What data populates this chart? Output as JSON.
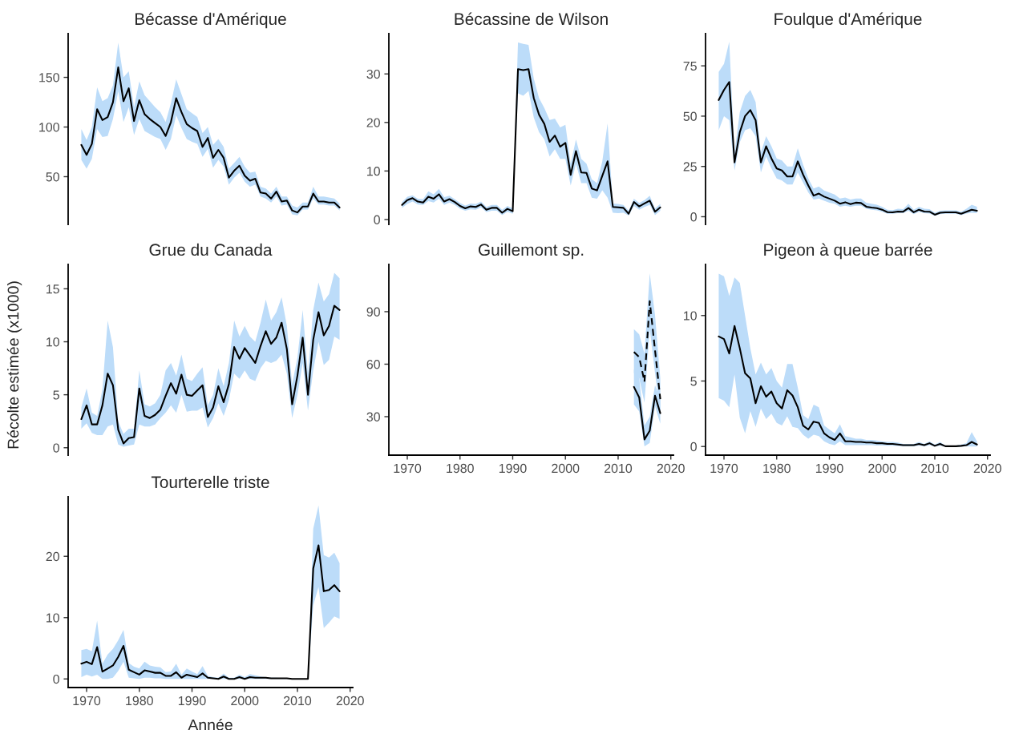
{
  "chart_data": [
    {
      "type": "line",
      "title": "Bécasse d'Amérique",
      "tick_labels": "y",
      "ylim": [
        2,
        194
      ],
      "yticks": [
        50,
        100,
        150
      ],
      "x": [
        1969,
        1970,
        1971,
        1972,
        1973,
        1974,
        1975,
        1976,
        1977,
        1978,
        1979,
        1980,
        1981,
        1982,
        1983,
        1984,
        1985,
        1986,
        1987,
        1988,
        1989,
        1990,
        1991,
        1992,
        1993,
        1994,
        1995,
        1996,
        1997,
        1998,
        1999,
        2000,
        2001,
        2002,
        2003,
        2004,
        2005,
        2006,
        2007,
        2008,
        2009,
        2010,
        2011,
        2012,
        2013,
        2014,
        2015,
        2016,
        2017,
        2018
      ],
      "series": [
        {
          "color": "#000000",
          "line_style": "solid",
          "values": [
            82,
            72,
            83,
            118,
            107,
            110,
            125,
            160,
            126,
            139,
            106,
            127,
            113,
            108,
            104,
            100,
            91,
            105,
            129,
            115,
            103,
            99,
            96,
            80,
            89,
            69,
            77,
            69,
            49,
            56,
            61,
            51,
            46,
            48,
            34,
            33,
            28,
            35,
            25,
            26,
            16,
            14,
            20,
            20,
            33,
            25,
            25,
            24,
            24,
            19
          ],
          "upper": [
            98,
            87,
            100,
            140,
            126,
            129,
            142,
            185,
            150,
            156,
            120,
            146,
            132,
            126,
            120,
            115,
            105,
            124,
            148,
            133,
            118,
            114,
            110,
            94,
            100,
            82,
            88,
            80,
            58,
            64,
            70,
            60,
            54,
            55,
            40,
            38,
            33,
            40,
            30,
            30,
            21,
            19,
            24,
            24,
            40,
            30,
            30,
            29,
            28,
            23
          ],
          "lower": [
            67,
            58,
            68,
            98,
            90,
            91,
            108,
            136,
            105,
            120,
            92,
            108,
            96,
            93,
            90,
            88,
            77,
            88,
            112,
            99,
            88,
            85,
            83,
            70,
            78,
            59,
            67,
            60,
            42,
            49,
            54,
            45,
            40,
            42,
            30,
            28,
            24,
            30,
            21,
            22,
            12,
            11,
            17,
            17,
            28,
            22,
            22,
            21,
            21,
            16
          ]
        }
      ]
    },
    {
      "type": "line",
      "title": "Bécassine de Wilson",
      "tick_labels": "y",
      "ylim": [
        -1,
        38.3
      ],
      "yticks": [
        0,
        10,
        20,
        30
      ],
      "x": [
        1969,
        1970,
        1971,
        1972,
        1973,
        1974,
        1975,
        1976,
        1977,
        1978,
        1979,
        1980,
        1981,
        1982,
        1983,
        1984,
        1985,
        1986,
        1987,
        1988,
        1989,
        1990,
        1991,
        1992,
        1993,
        1994,
        1995,
        1996,
        1997,
        1998,
        1999,
        2000,
        2001,
        2002,
        2003,
        2004,
        2005,
        2006,
        2007,
        2008,
        2009,
        2010,
        2011,
        2012,
        2013,
        2014,
        2015,
        2016,
        2017,
        2018
      ],
      "series": [
        {
          "color": "#000000",
          "line_style": "solid",
          "values": [
            3,
            4,
            4.4,
            3.7,
            3.5,
            4.7,
            4.3,
            5.2,
            3.7,
            4.2,
            3.6,
            2.8,
            2.3,
            2.7,
            2.6,
            3.1,
            2,
            2.4,
            2.4,
            1.4,
            2.2,
            1.7,
            31,
            30.8,
            31,
            25,
            21.6,
            19.7,
            16,
            17.3,
            15,
            15.8,
            9.2,
            14.1,
            9.7,
            9.6,
            6.4,
            6,
            9,
            12,
            2.6,
            2.5,
            2.4,
            1.2,
            3.6,
            2.7,
            3.3,
            3.9,
            1.6,
            2.5
          ],
          "upper": [
            3.6,
            4.7,
            5,
            4.3,
            4.2,
            5.8,
            5.2,
            6.3,
            4.6,
            4.9,
            4.2,
            3.4,
            2.9,
            3.3,
            3.2,
            3.7,
            2.6,
            3,
            3,
            2,
            2.8,
            2.3,
            36.5,
            36.2,
            36,
            29,
            25,
            23,
            20.5,
            20.8,
            19,
            19.5,
            11.5,
            16.5,
            12.5,
            11.5,
            8.3,
            7.5,
            12,
            19.8,
            3.3,
            3.2,
            3,
            1.8,
            4.3,
            3.4,
            4,
            4.9,
            2.3,
            3.2
          ],
          "lower": [
            2.4,
            3.2,
            3.7,
            3.1,
            3,
            3.8,
            3.5,
            4.3,
            3,
            3.5,
            3,
            2.2,
            1.8,
            2.1,
            2,
            2.5,
            1.5,
            1.8,
            1.8,
            0.9,
            1.6,
            1.2,
            26,
            25.5,
            26.5,
            21,
            18,
            16.5,
            13,
            14.5,
            12.5,
            12.5,
            7,
            11.5,
            7.5,
            7.5,
            4.5,
            4.3,
            6,
            4.5,
            1.4,
            1.3,
            1.4,
            0.8,
            2.8,
            2,
            2.6,
            3,
            0.9,
            1.8
          ]
        }
      ]
    },
    {
      "type": "line",
      "title": "Foulque d'Amérique",
      "tick_labels": "y",
      "ylim": [
        -3.8,
        91
      ],
      "yticks": [
        0,
        25,
        50,
        75
      ],
      "x": [
        1969,
        1970,
        1971,
        1972,
        1973,
        1974,
        1975,
        1976,
        1977,
        1978,
        1979,
        1980,
        1981,
        1982,
        1983,
        1984,
        1985,
        1986,
        1987,
        1988,
        1989,
        1990,
        1991,
        1992,
        1993,
        1994,
        1995,
        1996,
        1997,
        1998,
        1999,
        2000,
        2001,
        2002,
        2003,
        2004,
        2005,
        2006,
        2007,
        2008,
        2009,
        2010,
        2011,
        2012,
        2013,
        2014,
        2015,
        2016,
        2017,
        2018
      ],
      "series": [
        {
          "color": "#000000",
          "line_style": "solid",
          "values": [
            58,
            63,
            67,
            27,
            42,
            50,
            53,
            48,
            27,
            35,
            29,
            24,
            23,
            20,
            20,
            27.5,
            21,
            15.5,
            10.5,
            11.5,
            10,
            9,
            8,
            6.5,
            7.2,
            6.3,
            7,
            6.8,
            5,
            4.6,
            4.3,
            3.5,
            2.3,
            2.2,
            2.6,
            2.5,
            4.3,
            2.2,
            3.5,
            2.6,
            2.5,
            1,
            2,
            2.2,
            2.2,
            2.2,
            1.5,
            2.5,
            3.5,
            3
          ],
          "upper": [
            72,
            76,
            87,
            32,
            52,
            60,
            63,
            57,
            32,
            40,
            35,
            29,
            28,
            25,
            25,
            34,
            26,
            19,
            14,
            15,
            13,
            12,
            11,
            9,
            9.5,
            8.5,
            9,
            9,
            7,
            6.5,
            6,
            5,
            3.5,
            3.3,
            4,
            3.8,
            6.5,
            3.5,
            5,
            4,
            3.8,
            2,
            3,
            3.2,
            3.2,
            3.2,
            2.5,
            4,
            6,
            5
          ],
          "lower": [
            43,
            50,
            48,
            23,
            37,
            43,
            44,
            40,
            22,
            30,
            24,
            19,
            18,
            16,
            16,
            22,
            17,
            12,
            8.5,
            9,
            8,
            7,
            6.5,
            5,
            5.5,
            5,
            5.5,
            5.5,
            4,
            3.5,
            3.2,
            2.5,
            1.5,
            1.5,
            1.8,
            1.8,
            3,
            1.3,
            2.5,
            1.8,
            1.6,
            0.5,
            1.3,
            1.5,
            1.5,
            1.5,
            0.8,
            1.6,
            2,
            1.8
          ]
        }
      ]
    },
    {
      "type": "line",
      "title": "Grue du Canada",
      "ylabel": "Récolte estimée (x1000)",
      "tick_labels": "y",
      "ylim": [
        -0.7,
        17.3
      ],
      "yticks": [
        0,
        5,
        10,
        15
      ],
      "x": [
        1969,
        1970,
        1971,
        1972,
        1973,
        1974,
        1975,
        1976,
        1977,
        1978,
        1979,
        1980,
        1981,
        1982,
        1983,
        1984,
        1985,
        1986,
        1987,
        1988,
        1989,
        1990,
        1991,
        1992,
        1993,
        1994,
        1995,
        1996,
        1997,
        1998,
        1999,
        2000,
        2001,
        2002,
        2003,
        2004,
        2005,
        2006,
        2007,
        2008,
        2009,
        2010,
        2011,
        2012,
        2013,
        2014,
        2015,
        2016,
        2017,
        2018
      ],
      "series": [
        {
          "color": "#000000",
          "line_style": "solid",
          "values": [
            2.7,
            4,
            2.2,
            2.2,
            4,
            7,
            5.9,
            1.7,
            0.4,
            0.9,
            1,
            5.6,
            3,
            2.8,
            3.1,
            3.6,
            4.9,
            6.1,
            5.1,
            6.9,
            5,
            4.9,
            5.4,
            5.9,
            2.9,
            3.8,
            5.8,
            4.3,
            6,
            9.5,
            8.4,
            9.4,
            8.7,
            8,
            9.6,
            11,
            9.8,
            10.4,
            11.8,
            9.3,
            4.1,
            6.8,
            10.4,
            5,
            10.2,
            12.8,
            10.6,
            11.5,
            13.4,
            13
          ],
          "upper": [
            3.8,
            5.6,
            3.3,
            3,
            5.5,
            12,
            9.5,
            2.5,
            1.3,
            1.8,
            1.8,
            7.3,
            4.1,
            3.9,
            4.2,
            5,
            7.3,
            8,
            6.8,
            8.8,
            6.5,
            6.3,
            7,
            7.6,
            4,
            5,
            7.5,
            5.8,
            8,
            12,
            10.5,
            11.5,
            10.5,
            10,
            11.8,
            14,
            12,
            12.8,
            14.2,
            11.5,
            6,
            8.5,
            13,
            7,
            13,
            15.6,
            13.8,
            14.5,
            16.5,
            16
          ],
          "lower": [
            1.8,
            2.3,
            1.4,
            1.2,
            1.2,
            2,
            2.2,
            0.3,
            0.1,
            0.2,
            0.3,
            2.2,
            2,
            2,
            2.2,
            2.8,
            3.3,
            4,
            3.3,
            5,
            3.4,
            3.5,
            3.5,
            3.8,
            1.9,
            2.8,
            4.2,
            3,
            4.5,
            7,
            6.5,
            7.3,
            6.5,
            6.3,
            7.5,
            8.2,
            8,
            8.2,
            8.8,
            7,
            2.8,
            5,
            8,
            3.5,
            7.3,
            10,
            7.8,
            8.3,
            10.5,
            10.2
          ]
        }
      ]
    },
    {
      "type": "line",
      "title": "Guillemont sp.",
      "xlim": [
        1966.5,
        2020.5
      ],
      "xticks": [
        1970,
        1980,
        1990,
        2000,
        2010,
        2020
      ],
      "ylim": [
        8,
        117
      ],
      "yticks": [
        30,
        60,
        90
      ],
      "series": [
        {
          "color": "#000000",
          "line_style": "solid",
          "x": [
            2013,
            2014,
            2015,
            2016,
            2017,
            2018
          ],
          "values": [
            47,
            41,
            17,
            22,
            42,
            32
          ],
          "upper": [
            57,
            52,
            25,
            30,
            48,
            40
          ],
          "lower": [
            37,
            33,
            13,
            15,
            36,
            26
          ]
        },
        {
          "color": "#000000",
          "line_style": "dashed",
          "x": [
            2013,
            2014,
            2015,
            2016,
            2017,
            2018
          ],
          "values": [
            67,
            64,
            50,
            96,
            68,
            40
          ],
          "upper": [
            80,
            77,
            66,
            112,
            88,
            52
          ],
          "lower": [
            55,
            52,
            38,
            80,
            55,
            32
          ]
        }
      ]
    },
    {
      "type": "line",
      "title": "Pigeon à queue barrée",
      "xlim": [
        1966.5,
        2020.5
      ],
      "xticks": [
        1970,
        1980,
        1990,
        2000,
        2010,
        2020
      ],
      "ylim": [
        -0.66,
        13.9
      ],
      "yticks": [
        0,
        5,
        10
      ],
      "x": [
        1969,
        1970,
        1971,
        1972,
        1973,
        1974,
        1975,
        1976,
        1977,
        1978,
        1979,
        1980,
        1981,
        1982,
        1983,
        1984,
        1985,
        1986,
        1987,
        1988,
        1989,
        1990,
        1991,
        1992,
        1993,
        1994,
        1995,
        1996,
        1997,
        1998,
        1999,
        2000,
        2001,
        2002,
        2003,
        2004,
        2005,
        2006,
        2007,
        2008,
        2009,
        2010,
        2011,
        2012,
        2013,
        2014,
        2015,
        2016,
        2017,
        2018
      ],
      "series": [
        {
          "color": "#000000",
          "line_style": "solid",
          "values": [
            8.4,
            8.2,
            7.1,
            9.2,
            7.5,
            5.6,
            5.2,
            3.3,
            4.6,
            3.8,
            4.2,
            3.3,
            2.9,
            4.3,
            3.9,
            3,
            1.6,
            1.3,
            1.9,
            1.8,
            1,
            0.7,
            0.5,
            1,
            0.4,
            0.4,
            0.35,
            0.35,
            0.3,
            0.3,
            0.25,
            0.25,
            0.2,
            0.2,
            0.15,
            0.1,
            0.1,
            0.1,
            0.2,
            0.1,
            0.25,
            0.05,
            0.2,
            0.02,
            0.02,
            0.02,
            0.05,
            0.1,
            0.35,
            0.15
          ],
          "upper": [
            13.2,
            13,
            11.5,
            12.9,
            12.5,
            10,
            7.5,
            5.5,
            6.4,
            5.5,
            6,
            5,
            4.5,
            6.3,
            6.3,
            4.5,
            2.4,
            2.1,
            3.2,
            3,
            1.6,
            1.3,
            1,
            1.7,
            0.8,
            0.7,
            0.6,
            0.6,
            0.5,
            0.5,
            0.45,
            0.4,
            0.35,
            0.35,
            0.3,
            0.2,
            0.2,
            0.2,
            0.35,
            0.2,
            0.4,
            0.15,
            0.35,
            0.08,
            0.08,
            0.08,
            0.15,
            0.25,
            1.1,
            0.4
          ],
          "lower": [
            3.7,
            3.5,
            3,
            5.5,
            2.2,
            1,
            2.7,
            1.5,
            2.9,
            2.1,
            2.5,
            1.8,
            1.6,
            2.3,
            1.5,
            1.4,
            0.9,
            0.6,
            0.9,
            0.8,
            0.4,
            0.2,
            0.1,
            0.4,
            0.1,
            0.1,
            0.1,
            0.1,
            0.1,
            0.1,
            0.08,
            0.08,
            0.06,
            0.06,
            0.04,
            0.02,
            0.02,
            0.02,
            0.07,
            0.02,
            0.1,
            0,
            0.06,
            0,
            0,
            0,
            0,
            0.02,
            0,
            0
          ]
        }
      ]
    },
    {
      "type": "line",
      "title": "Tourterelle triste",
      "xlabel": "Année",
      "xlim": [
        1966.5,
        2020.5
      ],
      "xticks": [
        1970,
        1980,
        1990,
        2000,
        2010,
        2020
      ],
      "ylim": [
        -1.4,
        29.7
      ],
      "yticks": [
        0,
        10,
        20
      ],
      "x": [
        1969,
        1970,
        1971,
        1972,
        1973,
        1974,
        1975,
        1976,
        1977,
        1978,
        1979,
        1980,
        1981,
        1982,
        1983,
        1984,
        1985,
        1986,
        1987,
        1988,
        1989,
        1990,
        1991,
        1992,
        1993,
        1994,
        1995,
        1996,
        1997,
        1998,
        1999,
        2000,
        2001,
        2002,
        2003,
        2004,
        2005,
        2006,
        2007,
        2008,
        2009,
        2010,
        2011,
        2012,
        2013,
        2014,
        2015,
        2016,
        2017,
        2018
      ],
      "series": [
        {
          "color": "#000000",
          "line_style": "solid",
          "values": [
            2.5,
            2.8,
            2.4,
            5.2,
            1.2,
            1.7,
            2.2,
            3.6,
            5.4,
            1.5,
            1.1,
            0.7,
            1.4,
            1.2,
            1,
            1,
            0.5,
            0.5,
            1.1,
            0.2,
            0.7,
            0.5,
            0.3,
            0.9,
            0.2,
            0.1,
            0,
            0.4,
            0,
            0,
            0.3,
            0,
            0.3,
            0.2,
            0.2,
            0.2,
            0.1,
            0.1,
            0.1,
            0.1,
            0,
            0,
            0,
            0,
            18,
            21.8,
            14.3,
            14.5,
            15.3,
            14.3
          ],
          "upper": [
            4.7,
            4.9,
            4.5,
            9.5,
            2.5,
            4,
            4.9,
            6.3,
            8,
            2.6,
            2,
            1.7,
            2.8,
            2.2,
            2,
            1.9,
            1.1,
            1.2,
            2.5,
            0.7,
            1.7,
            1.2,
            0.8,
            2.1,
            0.5,
            0.3,
            0.2,
            0.9,
            0.2,
            0.2,
            0.7,
            0.3,
            0.8,
            0.6,
            0.4,
            0.3,
            0.2,
            0.2,
            0.1,
            0.1,
            0,
            0,
            0,
            0,
            24.5,
            28.3,
            20.2,
            19.8,
            20.6,
            18.9
          ],
          "lower": [
            0.3,
            0.7,
            0.4,
            0.7,
            0,
            0,
            0.2,
            1.3,
            2.8,
            0.2,
            0.1,
            0,
            0.2,
            0.2,
            0.1,
            0.1,
            0,
            0,
            0,
            0,
            0,
            0,
            0,
            0,
            0,
            0,
            0,
            0,
            0,
            0,
            0,
            0,
            0,
            0,
            0,
            0,
            0,
            0,
            0,
            0,
            0,
            0,
            0,
            0,
            12,
            15,
            8.3,
            9.2,
            10.2,
            9.8
          ]
        }
      ]
    }
  ]
}
